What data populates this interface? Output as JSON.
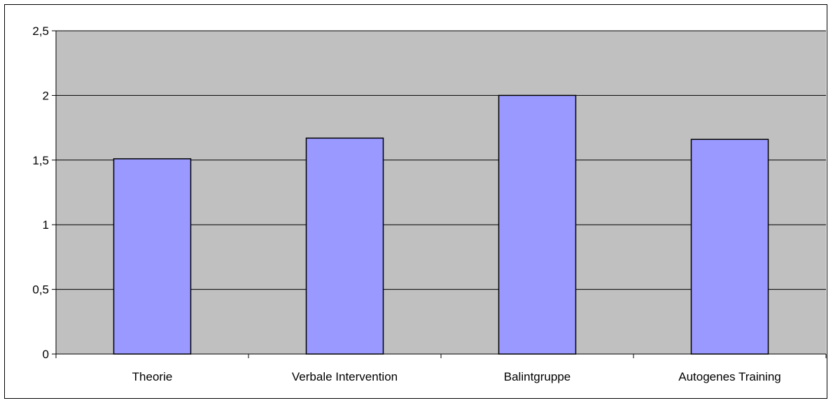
{
  "chart_data": {
    "type": "bar",
    "categories": [
      "Theorie",
      "Verbale Intervention",
      "Balintgruppe",
      "Autogenes Training"
    ],
    "values": [
      1.51,
      1.67,
      2.0,
      1.66
    ],
    "ylim": [
      0,
      2.5
    ],
    "yticks": [
      0,
      0.5,
      1,
      1.5,
      2,
      2.5
    ],
    "ytick_labels": [
      "0",
      "0,5",
      "1",
      "1,5",
      "2",
      "2,5"
    ],
    "grid": true,
    "legend": "none",
    "colors": {
      "plot_background": "#c0c0c0",
      "bar_fill": "#9999ff",
      "bar_stroke": "#000000",
      "gridline": "#000000"
    }
  }
}
